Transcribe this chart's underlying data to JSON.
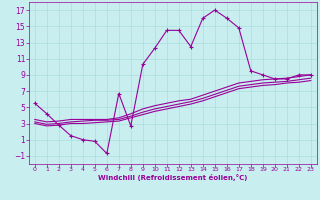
{
  "xlabel": "Windchill (Refroidissement éolien,°C)",
  "background_color": "#c8eef0",
  "line_color": "#990099",
  "grid_color": "#aadddd",
  "xlim": [
    -0.5,
    23.5
  ],
  "ylim": [
    -2,
    18
  ],
  "yticks": [
    -1,
    1,
    3,
    5,
    7,
    9,
    11,
    13,
    15,
    17
  ],
  "xticks": [
    0,
    1,
    2,
    3,
    4,
    5,
    6,
    7,
    8,
    9,
    10,
    11,
    12,
    13,
    14,
    15,
    16,
    17,
    18,
    19,
    20,
    21,
    22,
    23
  ],
  "curve1_x": [
    0,
    1,
    2,
    3,
    4,
    5,
    6,
    7,
    8,
    9,
    10,
    11,
    12,
    13,
    14,
    15,
    16,
    17,
    18,
    19,
    20,
    21,
    22,
    23
  ],
  "curve1_y": [
    5.5,
    4.2,
    2.8,
    1.5,
    1.0,
    0.8,
    -0.7,
    6.7,
    2.7,
    10.3,
    12.3,
    14.5,
    14.5,
    12.5,
    16.0,
    17.0,
    16.0,
    14.8,
    9.5,
    9.0,
    8.5,
    8.5,
    9.0,
    9.0
  ],
  "line1_x": [
    0,
    1,
    2,
    3,
    4,
    5,
    6,
    7,
    8,
    9,
    10,
    11,
    12,
    13,
    14,
    15,
    16,
    17,
    18,
    19,
    20,
    21,
    22,
    23
  ],
  "line1_y": [
    3.5,
    3.2,
    3.3,
    3.5,
    3.5,
    3.5,
    3.5,
    3.7,
    4.2,
    4.8,
    5.2,
    5.5,
    5.8,
    6.0,
    6.5,
    7.0,
    7.5,
    8.0,
    8.2,
    8.4,
    8.5,
    8.6,
    8.8,
    9.0
  ],
  "line2_x": [
    0,
    1,
    2,
    3,
    4,
    5,
    6,
    7,
    8,
    9,
    10,
    11,
    12,
    13,
    14,
    15,
    16,
    17,
    18,
    19,
    20,
    21,
    22,
    23
  ],
  "line2_y": [
    3.2,
    2.9,
    3.0,
    3.2,
    3.3,
    3.4,
    3.4,
    3.5,
    3.9,
    4.4,
    4.8,
    5.1,
    5.4,
    5.7,
    6.1,
    6.6,
    7.1,
    7.6,
    7.8,
    8.0,
    8.1,
    8.2,
    8.4,
    8.6
  ],
  "line3_x": [
    0,
    1,
    2,
    3,
    4,
    5,
    6,
    7,
    8,
    9,
    10,
    11,
    12,
    13,
    14,
    15,
    16,
    17,
    18,
    19,
    20,
    21,
    22,
    23
  ],
  "line3_y": [
    3.0,
    2.7,
    2.8,
    3.0,
    3.0,
    3.1,
    3.2,
    3.3,
    3.7,
    4.1,
    4.5,
    4.8,
    5.1,
    5.4,
    5.8,
    6.3,
    6.8,
    7.3,
    7.5,
    7.7,
    7.8,
    8.0,
    8.1,
    8.3
  ]
}
